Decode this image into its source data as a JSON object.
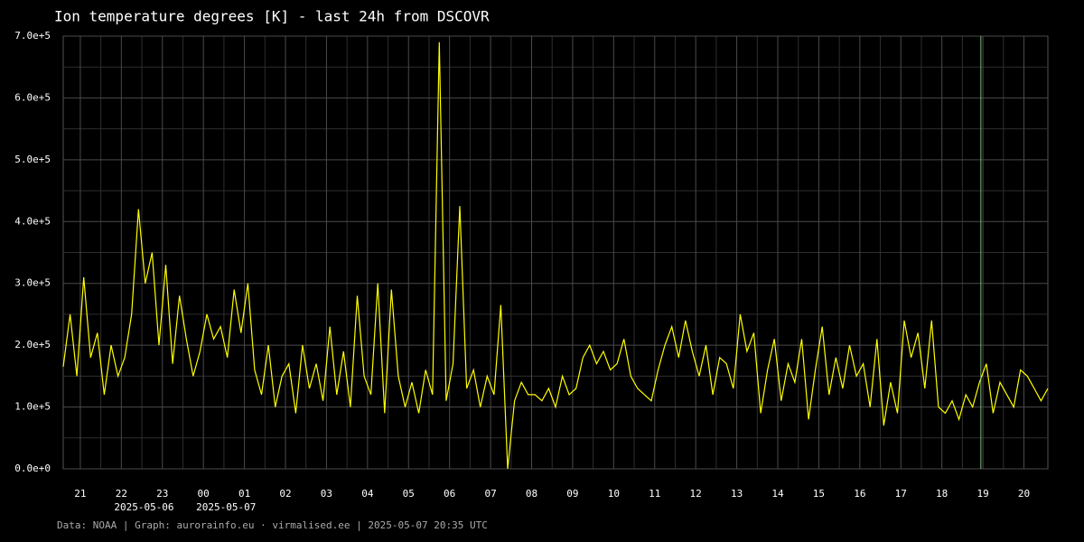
{
  "chart_data": {
    "type": "line",
    "title": "Ion temperature degrees [K] - last 24h from DSCOVR",
    "footer": "Data: NOAA | Graph: aurorainfo.eu · virmalised.ee | 2025-05-07 20:35 UTC",
    "x": [
      "2025-05-06 20:35",
      "2025-05-06 20:45",
      "2025-05-06 20:55",
      "2025-05-06 21:05",
      "2025-05-06 21:15",
      "2025-05-06 21:25",
      "2025-05-06 21:35",
      "2025-05-06 21:45",
      "2025-05-06 21:55",
      "2025-05-06 22:05",
      "2025-05-06 22:15",
      "2025-05-06 22:25",
      "2025-05-06 22:35",
      "2025-05-06 22:45",
      "2025-05-06 22:55",
      "2025-05-06 23:05",
      "2025-05-06 23:15",
      "2025-05-06 23:25",
      "2025-05-06 23:35",
      "2025-05-06 23:45",
      "2025-05-06 23:55",
      "2025-05-07 00:05",
      "2025-05-07 00:15",
      "2025-05-07 00:25",
      "2025-05-07 00:35",
      "2025-05-07 00:45",
      "2025-05-07 00:55",
      "2025-05-07 01:05",
      "2025-05-07 01:15",
      "2025-05-07 01:25",
      "2025-05-07 01:35",
      "2025-05-07 01:45",
      "2025-05-07 01:55",
      "2025-05-07 02:05",
      "2025-05-07 02:15",
      "2025-05-07 02:25",
      "2025-05-07 02:35",
      "2025-05-07 02:45",
      "2025-05-07 02:55",
      "2025-05-07 03:05",
      "2025-05-07 03:15",
      "2025-05-07 03:25",
      "2025-05-07 03:35",
      "2025-05-07 03:45",
      "2025-05-07 03:55",
      "2025-05-07 04:05",
      "2025-05-07 04:15",
      "2025-05-07 04:25",
      "2025-05-07 04:35",
      "2025-05-07 04:45",
      "2025-05-07 04:55",
      "2025-05-07 05:05",
      "2025-05-07 05:15",
      "2025-05-07 05:25",
      "2025-05-07 05:35",
      "2025-05-07 05:45",
      "2025-05-07 05:55",
      "2025-05-07 06:05",
      "2025-05-07 06:15",
      "2025-05-07 06:25",
      "2025-05-07 06:35",
      "2025-05-07 06:45",
      "2025-05-07 06:55",
      "2025-05-07 07:05",
      "2025-05-07 07:15",
      "2025-05-07 07:25",
      "2025-05-07 07:35",
      "2025-05-07 07:45",
      "2025-05-07 07:55",
      "2025-05-07 08:05",
      "2025-05-07 08:15",
      "2025-05-07 08:25",
      "2025-05-07 08:35",
      "2025-05-07 08:45",
      "2025-05-07 08:55",
      "2025-05-07 09:05",
      "2025-05-07 09:15",
      "2025-05-07 09:25",
      "2025-05-07 09:35",
      "2025-05-07 09:45",
      "2025-05-07 09:55",
      "2025-05-07 10:05",
      "2025-05-07 10:15",
      "2025-05-07 10:25",
      "2025-05-07 10:35",
      "2025-05-07 10:45",
      "2025-05-07 10:55",
      "2025-05-07 11:05",
      "2025-05-07 11:15",
      "2025-05-07 11:25",
      "2025-05-07 11:35",
      "2025-05-07 11:45",
      "2025-05-07 11:55",
      "2025-05-07 12:05",
      "2025-05-07 12:15",
      "2025-05-07 12:25",
      "2025-05-07 12:35",
      "2025-05-07 12:45",
      "2025-05-07 12:55",
      "2025-05-07 13:05",
      "2025-05-07 13:15",
      "2025-05-07 13:25",
      "2025-05-07 13:35",
      "2025-05-07 13:45",
      "2025-05-07 13:55",
      "2025-05-07 14:05",
      "2025-05-07 14:15",
      "2025-05-07 14:25",
      "2025-05-07 14:35",
      "2025-05-07 14:45",
      "2025-05-07 14:55",
      "2025-05-07 15:05",
      "2025-05-07 15:15",
      "2025-05-07 15:25",
      "2025-05-07 15:35",
      "2025-05-07 15:45",
      "2025-05-07 15:55",
      "2025-05-07 16:05",
      "2025-05-07 16:15",
      "2025-05-07 16:25",
      "2025-05-07 16:35",
      "2025-05-07 16:45",
      "2025-05-07 16:55",
      "2025-05-07 17:05",
      "2025-05-07 17:15",
      "2025-05-07 17:25",
      "2025-05-07 17:35",
      "2025-05-07 17:45",
      "2025-05-07 17:55",
      "2025-05-07 18:05",
      "2025-05-07 18:15",
      "2025-05-07 18:25",
      "2025-05-07 18:35",
      "2025-05-07 18:45",
      "2025-05-07 18:55",
      "2025-05-07 19:05",
      "2025-05-07 19:15",
      "2025-05-07 19:25",
      "2025-05-07 19:35",
      "2025-05-07 19:45",
      "2025-05-07 19:55",
      "2025-05-07 20:05",
      "2025-05-07 20:15",
      "2025-05-07 20:25",
      "2025-05-07 20:35"
    ],
    "series": [
      {
        "color": "#ffff00",
        "values": [
          165000,
          250000,
          150000,
          310000,
          180000,
          220000,
          120000,
          200000,
          150000,
          180000,
          250000,
          420000,
          300000,
          350000,
          200000,
          330000,
          170000,
          280000,
          210000,
          150000,
          190000,
          250000,
          210000,
          230000,
          180000,
          290000,
          220000,
          300000,
          160000,
          120000,
          200000,
          100000,
          150000,
          170000,
          90000,
          200000,
          130000,
          170000,
          110000,
          230000,
          120000,
          190000,
          100000,
          280000,
          150000,
          120000,
          300000,
          90000,
          290000,
          150000,
          100000,
          140000,
          90000,
          160000,
          120000,
          690000,
          110000,
          170000,
          425000,
          130000,
          160000,
          100000,
          150000,
          120000,
          265000,
          0,
          110000,
          140000,
          120000,
          120000,
          110000,
          130000,
          100000,
          150000,
          120000,
          130000,
          180000,
          200000,
          170000,
          190000,
          160000,
          170000,
          210000,
          150000,
          130000,
          120000,
          110000,
          160000,
          200000,
          230000,
          180000,
          240000,
          190000,
          150000,
          200000,
          120000,
          180000,
          170000,
          130000,
          250000,
          190000,
          220000,
          90000,
          160000,
          210000,
          110000,
          170000,
          140000,
          210000,
          80000,
          160000,
          230000,
          120000,
          180000,
          130000,
          200000,
          150000,
          170000,
          100000,
          210000,
          70000,
          140000,
          90000,
          240000,
          180000,
          220000,
          130000,
          240000,
          100000,
          90000,
          110000,
          80000,
          120000,
          100000,
          140000,
          170000,
          90000,
          140000,
          120000,
          100000,
          160000,
          150000,
          130000,
          110000,
          130000
        ]
      }
    ],
    "xlim": [
      "2025-05-06 20:35",
      "2025-05-07 20:35"
    ],
    "xticks": [
      {
        "value": "2025-05-06 21:00",
        "label": "21"
      },
      {
        "value": "2025-05-06 22:00",
        "label": "22"
      },
      {
        "value": "2025-05-06 23:00",
        "label": "23"
      },
      {
        "value": "2025-05-07 00:00",
        "label": "00"
      },
      {
        "value": "2025-05-07 01:00",
        "label": "01"
      },
      {
        "value": "2025-05-07 02:00",
        "label": "02"
      },
      {
        "value": "2025-05-07 03:00",
        "label": "03"
      },
      {
        "value": "2025-05-07 04:00",
        "label": "04"
      },
      {
        "value": "2025-05-07 05:00",
        "label": "05"
      },
      {
        "value": "2025-05-07 06:00",
        "label": "06"
      },
      {
        "value": "2025-05-07 07:00",
        "label": "07"
      },
      {
        "value": "2025-05-07 08:00",
        "label": "08"
      },
      {
        "value": "2025-05-07 09:00",
        "label": "09"
      },
      {
        "value": "2025-05-07 10:00",
        "label": "10"
      },
      {
        "value": "2025-05-07 11:00",
        "label": "11"
      },
      {
        "value": "2025-05-07 12:00",
        "label": "12"
      },
      {
        "value": "2025-05-07 13:00",
        "label": "13"
      },
      {
        "value": "2025-05-07 14:00",
        "label": "14"
      },
      {
        "value": "2025-05-07 15:00",
        "label": "15"
      },
      {
        "value": "2025-05-07 16:00",
        "label": "16"
      },
      {
        "value": "2025-05-07 17:00",
        "label": "17"
      },
      {
        "value": "2025-05-07 18:00",
        "label": "18"
      },
      {
        "value": "2025-05-07 19:00",
        "label": "19"
      },
      {
        "value": "2025-05-07 20:00",
        "label": "20"
      }
    ],
    "xdate_labels": [
      {
        "value": "2025-05-06 22:00",
        "label": "2025-05-06"
      },
      {
        "value": "2025-05-07 00:00",
        "label": "2025-05-07"
      }
    ],
    "vline": {
      "value": "2025-05-07 18:57",
      "color": "#7fbf7f"
    },
    "ylim": [
      0,
      700000
    ],
    "yticks": [
      {
        "value": 0,
        "label": "0.0e+0"
      },
      {
        "value": 100000,
        "label": "1.0e+5"
      },
      {
        "value": 200000,
        "label": "2.0e+5"
      },
      {
        "value": 300000,
        "label": "3.0e+5"
      },
      {
        "value": 400000,
        "label": "4.0e+5"
      },
      {
        "value": 500000,
        "label": "5.0e+5"
      },
      {
        "value": 600000,
        "label": "6.0e+5"
      },
      {
        "value": 700000,
        "label": "7.0e+5"
      }
    ],
    "grid": true
  }
}
